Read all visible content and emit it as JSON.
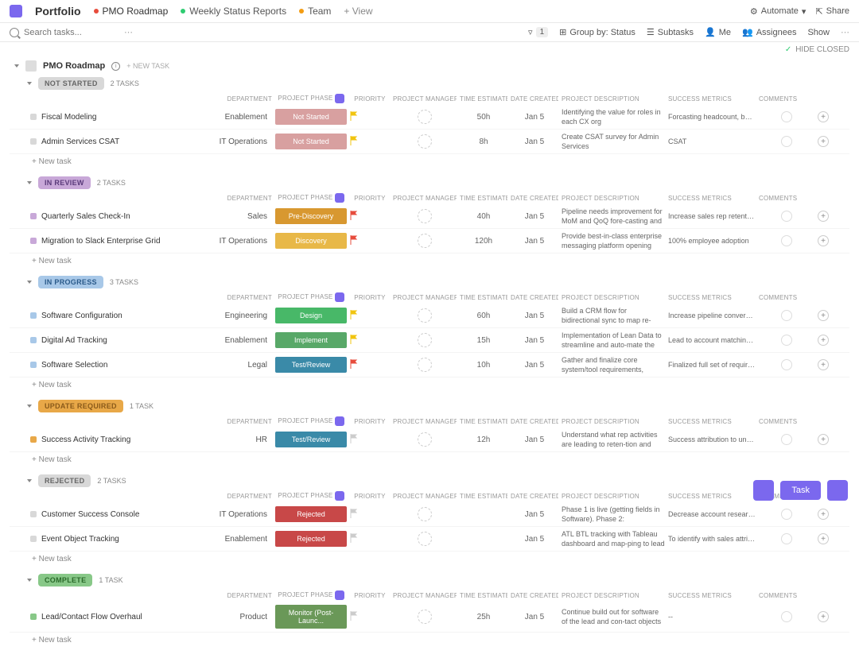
{
  "topbar": {
    "portfolio": "Portfolio",
    "tabs": [
      {
        "label": "PMO Roadmap",
        "dot": "#e74c3c",
        "active": true
      },
      {
        "label": "Weekly Status Reports",
        "dot": "#2ecc71"
      },
      {
        "label": "Team",
        "dot": "#f39c12"
      }
    ],
    "add_view": "+ View",
    "automate": "Automate",
    "share": "Share"
  },
  "toolbar": {
    "search_placeholder": "Search tasks...",
    "filter_count": "1",
    "group_by": "Group by: Status",
    "subtasks": "Subtasks",
    "me": "Me",
    "assignees": "Assignees",
    "show": "Show"
  },
  "hide_closed": "HIDE CLOSED",
  "roadmap_label": "PMO Roadmap",
  "new_task_header": "+ NEW TASK",
  "columns": [
    "",
    "",
    "DEPARTMENT",
    "PROJECT PHASE",
    "PRIORITY",
    "PROJECT MANAGER",
    "TIME ESTIMATE",
    "DATE CREATED",
    "PROJECT DESCRIPTION",
    "SUCCESS METRICS",
    "COMMENTS",
    ""
  ],
  "sections": [
    {
      "status": "NOT STARTED",
      "status_bg": "#d8d8d8",
      "status_color": "#666",
      "count": "2 TASKS",
      "tasks": [
        {
          "dot": "#d8d8d8",
          "name": "Fiscal Modeling",
          "dept": "Enablement",
          "phase": "Not Started",
          "phase_bg": "#d8a0a0",
          "flag": "#f1c40f",
          "time": "50h",
          "date": "Jan 5",
          "desc": "Identifying the value for roles in each CX org",
          "metrics": "Forcasting headcount, bottom line, CAC, C..."
        },
        {
          "dot": "#d8d8d8",
          "name": "Admin Services CSAT",
          "dept": "IT Operations",
          "phase": "Not Started",
          "phase_bg": "#d8a0a0",
          "flag": "#f1c40f",
          "time": "8h",
          "date": "Jan 5",
          "desc": "Create CSAT survey for Admin Services",
          "metrics": "CSAT"
        }
      ]
    },
    {
      "status": "IN REVIEW",
      "status_bg": "#c8a8d8",
      "status_color": "#5a3a7a",
      "count": "2 TASKS",
      "tasks": [
        {
          "dot": "#c8a8d8",
          "name": "Quarterly Sales Check-In",
          "dept": "Sales",
          "phase": "Pre-Discovery",
          "phase_bg": "#d89830",
          "flag": "#e74c3c",
          "time": "40h",
          "date": "Jan 5",
          "desc": "Pipeline needs improvement for MoM and QoQ fore-casting and quota attainment.  SPIFF mgmt proces...",
          "metrics": "Increase sales rep retention rates QoQ and ..."
        },
        {
          "dot": "#c8a8d8",
          "name": "Migration to Slack Enterprise Grid",
          "dept": "IT Operations",
          "phase": "Discovery",
          "phase_bg": "#e8b848",
          "flag": "#e74c3c",
          "time": "120h",
          "date": "Jan 5",
          "desc": "Provide best-in-class enterprise messaging platform opening access to a controlled a multi-instance envi...",
          "metrics": "100% employee adoption"
        }
      ]
    },
    {
      "status": "IN PROGRESS",
      "status_bg": "#a8c8e8",
      "status_color": "#2a5a8a",
      "count": "3 TASKS",
      "tasks": [
        {
          "dot": "#a8c8e8",
          "name": "Software Configuration",
          "dept": "Engineering",
          "phase": "Design",
          "phase_bg": "#48b868",
          "flag": "#f1c40f",
          "time": "60h",
          "date": "Jan 5",
          "desc": "Build a CRM flow for bidirectional sync to map re-quired Software",
          "metrics": "Increase pipeline conversion of new busine..."
        },
        {
          "dot": "#a8c8e8",
          "name": "Digital Ad Tracking",
          "dept": "Enablement",
          "phase": "Implement",
          "phase_bg": "#58a868",
          "flag": "#f1c40f",
          "time": "15h",
          "date": "Jan 5",
          "desc": "Implementation of Lean Data to streamline and auto-mate the lead routing capabilities.",
          "metrics": "Lead to account matching and handling of f..."
        },
        {
          "dot": "#a8c8e8",
          "name": "Software Selection",
          "dept": "Legal",
          "phase": "Test/Review",
          "phase_bg": "#3a8aa8",
          "flag": "#e74c3c",
          "time": "10h",
          "date": "Jan 5",
          "desc": "Gather and finalize core system/tool requirements, MoSCoW capabilities, and acceptance criteria for C...",
          "metrics": "Finalized full set of requirements for Vendo..."
        }
      ]
    },
    {
      "status": "UPDATE REQUIRED",
      "status_bg": "#e8a848",
      "status_color": "#8a5a1a",
      "count": "1 TASK",
      "tasks": [
        {
          "dot": "#e8a848",
          "name": "Success Activity Tracking",
          "dept": "HR",
          "phase": "Test/Review",
          "phase_bg": "#3a8aa8",
          "flag": "#ccc",
          "time": "12h",
          "date": "Jan 5",
          "desc": "Understand what rep activities are leading to reten-tion and expansion within their book of accounts.",
          "metrics": "Success attribution to understand custome..."
        }
      ]
    },
    {
      "status": "REJECTED",
      "status_bg": "#d8d8d8",
      "status_color": "#666",
      "count": "2 TASKS",
      "tasks": [
        {
          "dot": "#d8d8d8",
          "name": "Customer Success Console",
          "dept": "IT Operations",
          "phase": "Rejected",
          "phase_bg": "#c84848",
          "flag": "#ccc",
          "time": "",
          "date": "Jan 5",
          "desc": "Phase 1 is live (getting fields in Software).  Phase 2: Automations requirements gathering vs. vendor pur...",
          "metrics": "Decrease account research time for CSMs ..."
        },
        {
          "dot": "#d8d8d8",
          "name": "Event Object Tracking",
          "dept": "Enablement",
          "phase": "Rejected",
          "phase_bg": "#c84848",
          "flag": "#ccc",
          "time": "",
          "date": "Jan 5",
          "desc": "ATL BTL tracking with Tableau dashboard and map-ping to lead and contact objects",
          "metrics": "To identify with sales attribution variables (..."
        }
      ]
    },
    {
      "status": "COMPLETE",
      "status_bg": "#88c888",
      "status_color": "#2a6a2a",
      "count": "1 TASK",
      "tasks": [
        {
          "dot": "#88c888",
          "name": "Lead/Contact Flow Overhaul",
          "dept": "Product",
          "phase": "Monitor (Post-Launc...",
          "phase_bg": "#6a9858",
          "flag": "#ccc",
          "time": "25h",
          "date": "Jan 5",
          "desc": "Continue build out for software of the lead and con-tact objects",
          "metrics": "--"
        }
      ]
    }
  ],
  "new_task_label": "+ New task",
  "task_btn": "Task"
}
